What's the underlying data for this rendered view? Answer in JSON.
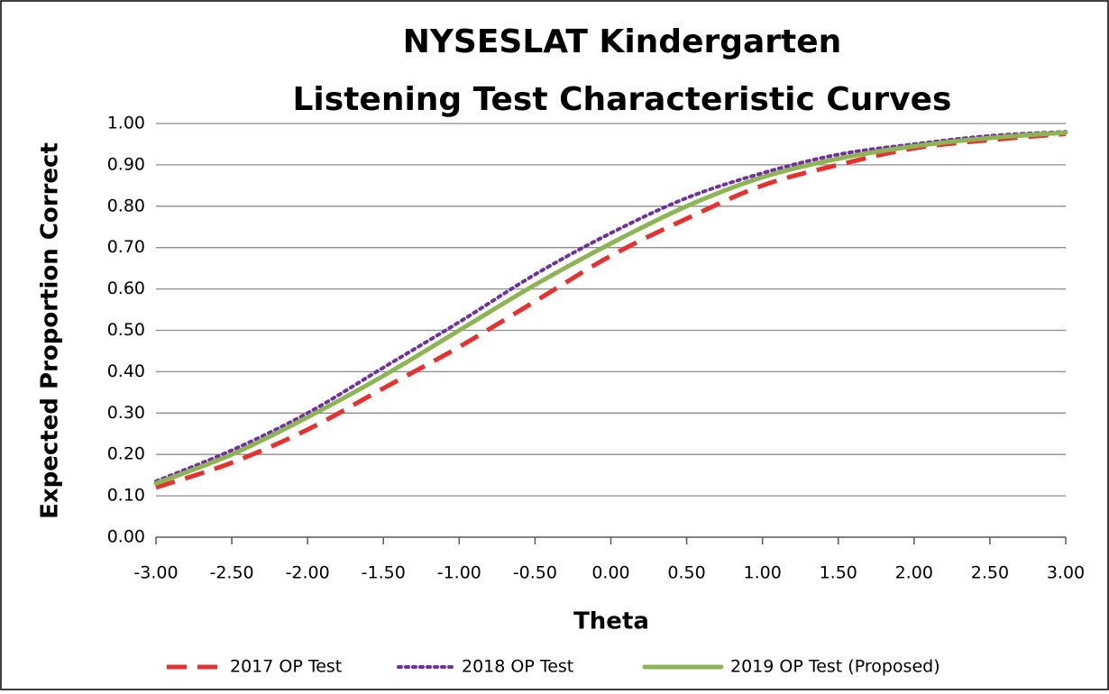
{
  "chart_data": {
    "type": "line",
    "title": [
      "NYSESLAT Kindergarten",
      "Listening Test Characteristic Curves"
    ],
    "x_label": "Theta",
    "y_label": "Expected Proportion Correct",
    "x": [
      -3,
      -2.5,
      -2,
      -1.5,
      -1,
      -0.5,
      0,
      0.5,
      1,
      1.5,
      2,
      2.5,
      3
    ],
    "series": [
      {
        "name": "2017 OP Test",
        "color": "#e8312f",
        "style": "dashed",
        "values": [
          0.12,
          0.18,
          0.26,
          0.36,
          0.46,
          0.57,
          0.68,
          0.77,
          0.85,
          0.9,
          0.94,
          0.96,
          0.975
        ]
      },
      {
        "name": "2018 OP Test",
        "color": "#7030a0",
        "style": "dotted",
        "values": [
          0.135,
          0.21,
          0.3,
          0.41,
          0.52,
          0.635,
          0.735,
          0.82,
          0.88,
          0.925,
          0.95,
          0.97,
          0.98
        ]
      },
      {
        "name": "2019 OP Test (Proposed)",
        "color": "#8db554",
        "style": "solid",
        "values": [
          0.13,
          0.2,
          0.29,
          0.39,
          0.5,
          0.61,
          0.71,
          0.8,
          0.87,
          0.915,
          0.945,
          0.965,
          0.978
        ]
      }
    ],
    "xlim": [
      -3,
      3
    ],
    "xticks": [
      {
        "value": -3,
        "label": "-3.00"
      },
      {
        "value": -2.5,
        "label": "-2.50"
      },
      {
        "value": -2,
        "label": "-2.00"
      },
      {
        "value": -1.5,
        "label": "-1.50"
      },
      {
        "value": -1,
        "label": "-1.00"
      },
      {
        "value": -0.5,
        "label": "-0.50"
      },
      {
        "value": 0,
        "label": "0.00"
      },
      {
        "value": 0.5,
        "label": "0.50"
      },
      {
        "value": 1,
        "label": "1.00"
      },
      {
        "value": 1.5,
        "label": "1.50"
      },
      {
        "value": 2,
        "label": "2.00"
      },
      {
        "value": 2.5,
        "label": "2.50"
      },
      {
        "value": 3,
        "label": "3.00"
      }
    ],
    "ylim": [
      0,
      1
    ],
    "yticks": [
      {
        "value": 0,
        "label": "0.00"
      },
      {
        "value": 0.1,
        "label": "0.10"
      },
      {
        "value": 0.2,
        "label": "0.20"
      },
      {
        "value": 0.3,
        "label": "0.30"
      },
      {
        "value": 0.4,
        "label": "0.40"
      },
      {
        "value": 0.5,
        "label": "0.50"
      },
      {
        "value": 0.6,
        "label": "0.60"
      },
      {
        "value": 0.7,
        "label": "0.70"
      },
      {
        "value": 0.8,
        "label": "0.80"
      },
      {
        "value": 0.9,
        "label": "0.90"
      },
      {
        "value": 1,
        "label": "1.00"
      }
    ],
    "grid": true,
    "legend": "bottom"
  }
}
